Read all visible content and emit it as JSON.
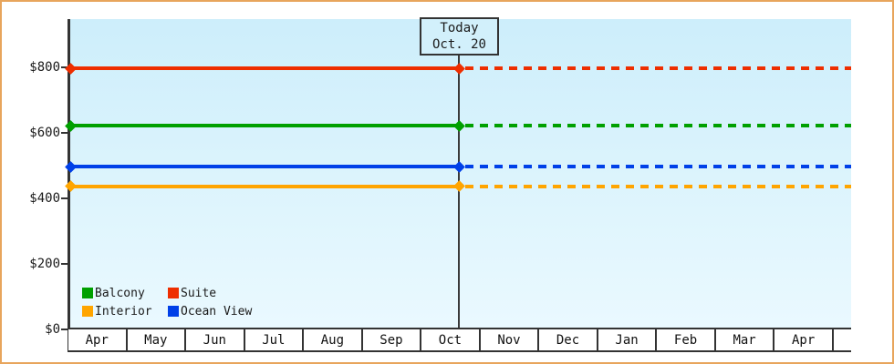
{
  "chart_data": {
    "type": "line",
    "title": "",
    "description": "Cruise cabin price history/forecast: constant price per cabin category across months, solid line before today, dashed projection after today, diamond markers at series start and at today",
    "x_categories": [
      "Apr",
      "May",
      "Jun",
      "Jul",
      "Aug",
      "Sep",
      "Oct",
      "Nov",
      "Dec",
      "Jan",
      "Feb",
      "Mar",
      "Apr"
    ],
    "y_ticks": [
      {
        "value": 0,
        "label": "$0"
      },
      {
        "value": 200,
        "label": "$200"
      },
      {
        "value": 400,
        "label": "$400"
      },
      {
        "value": 600,
        "label": "$600"
      },
      {
        "value": 800,
        "label": "$800"
      }
    ],
    "ylim": [
      0,
      945
    ],
    "grid": false,
    "legend_position": "bottom-left-inside-plot",
    "series": [
      {
        "name": "Balcony",
        "color": "#00a000",
        "value": 620
      },
      {
        "name": "Suite",
        "color": "#ee2e00",
        "value": 795
      },
      {
        "name": "Interior",
        "color": "#ffa500",
        "value": 435
      },
      {
        "name": "Ocean View",
        "color": "#0040e8",
        "value": 495
      }
    ],
    "today": {
      "line1": "Today",
      "line2": "Oct. 20",
      "month": "Oct",
      "month_index": 6,
      "day": 20,
      "days_in_month": 31
    }
  },
  "colors": {
    "frame_border": "#e8a55c",
    "axis": "#333333",
    "text": "#1a1a1a",
    "plot_bg_top": "#cdeefb",
    "plot_bg_bottom": "#eaf9ff"
  }
}
